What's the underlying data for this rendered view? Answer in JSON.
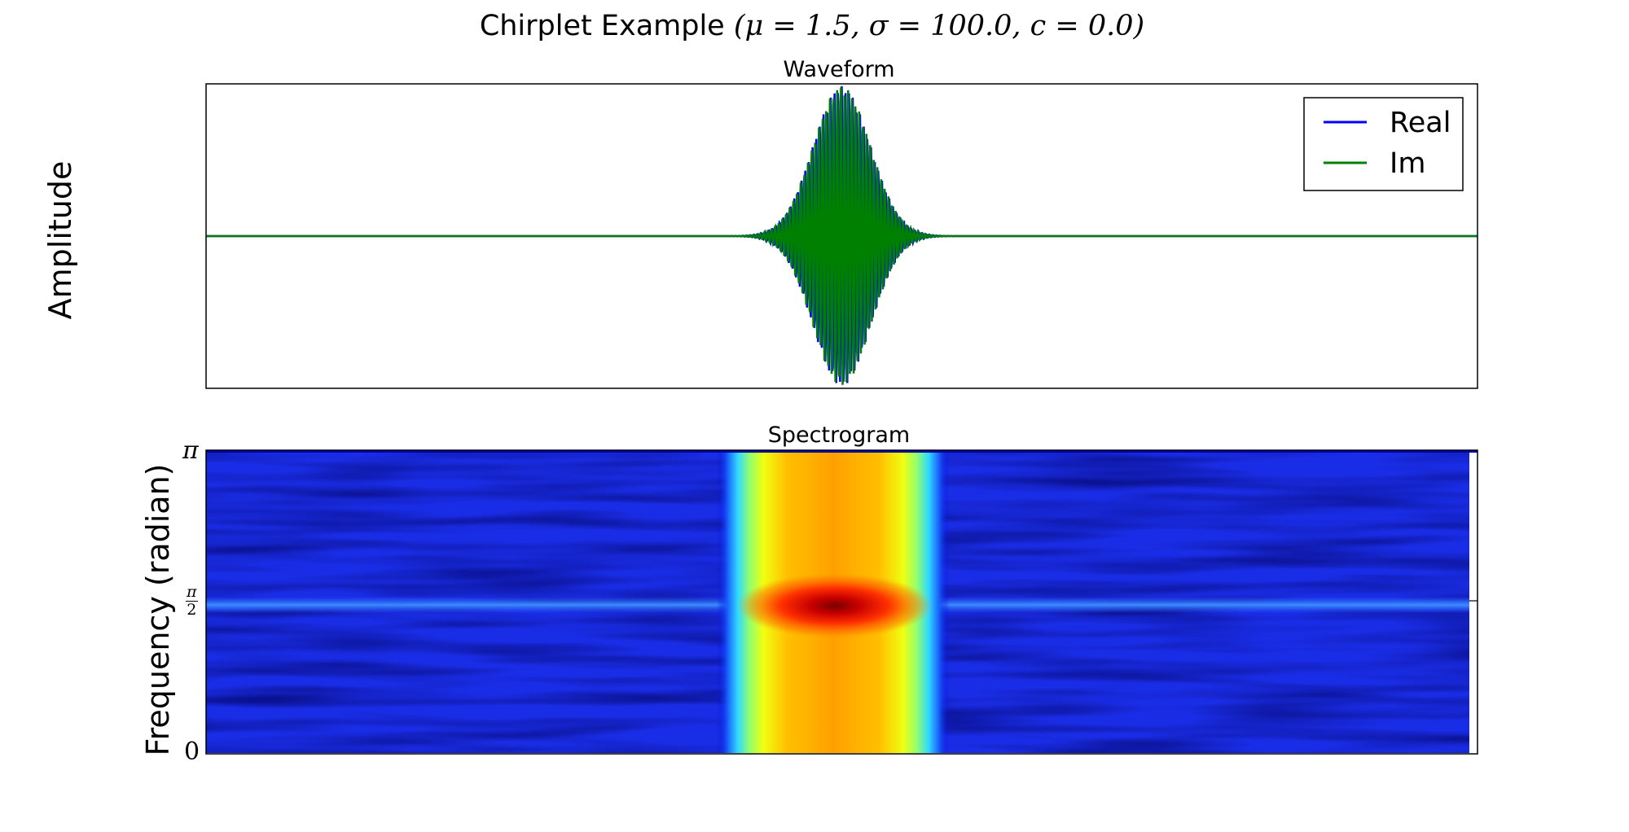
{
  "title": {
    "text": "Chirplet Example",
    "params": "(μ = 1.5, σ = 100.0, c = 0.0)"
  },
  "chart_data": [
    {
      "type": "line",
      "title": "Waveform",
      "xlabel": "",
      "ylabel": "Amplitude",
      "grid": false,
      "legend_position": "top-right",
      "series": [
        {
          "name": "Real",
          "color": "#0000ff"
        },
        {
          "name": "Im",
          "color": "#008000"
        }
      ],
      "x_center": 0.5,
      "envelope_width": 0.03,
      "peak_amplitude": 1.0
    },
    {
      "type": "heatmap",
      "title": "Spectrogram",
      "xlabel": "",
      "ylabel": "Frequency (radian)",
      "y_ticks": [
        "0",
        "π/2",
        "π"
      ],
      "ylim_labels": [
        "0",
        "π"
      ],
      "colormap": "jet",
      "peak_frequency_label": "π/2",
      "high_energy_band": [
        0.42,
        0.58
      ],
      "colors": {
        "background": "#1a2de6",
        "band_line": "#2a6bff",
        "peak": "#700000"
      }
    }
  ],
  "pi_symbol": "π",
  "half_pi": {
    "num": "π",
    "den": "2"
  },
  "zero": "0"
}
